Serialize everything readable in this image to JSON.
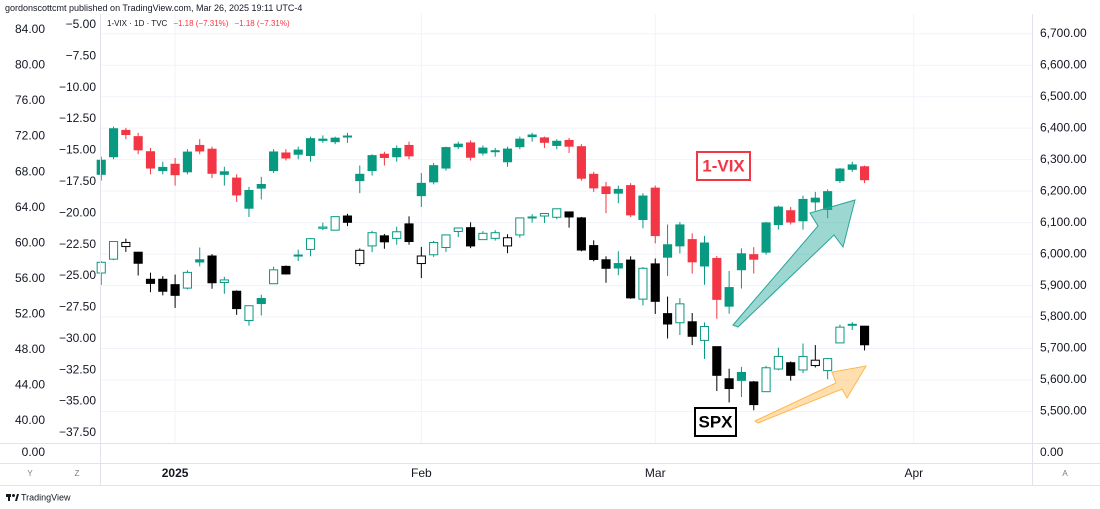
{
  "header": {
    "attribution": "gordonscottcmt published on TradingView.com, Mar 26, 2025 19:11 UTC-4",
    "footer": "TradingView"
  },
  "chart_data": {
    "type": "candlestick",
    "legend": {
      "symbol": "1-VIX · 1D · TVC",
      "values": [
        "−1.18 (−7.31%)",
        "−1.18 (−7.31%)"
      ]
    },
    "grid": true,
    "xlim": [
      -0.1,
      75.6
    ],
    "xticks": [
      {
        "value": 6,
        "label": "2025"
      },
      {
        "value": 26,
        "label": "Feb"
      },
      {
        "value": 45,
        "label": "Mar"
      },
      {
        "value": 66,
        "label": "Apr"
      }
    ],
    "y3lim": [
      37.5,
      85.35
    ],
    "y3ticks": [
      {
        "value": 84,
        "label": "84.00"
      },
      {
        "value": 80,
        "label": "80.00"
      },
      {
        "value": 76,
        "label": "76.00"
      },
      {
        "value": 72,
        "label": "72.00"
      },
      {
        "value": 68,
        "label": "68.00"
      },
      {
        "value": 64,
        "label": "64.00"
      },
      {
        "value": 60,
        "label": "60.00"
      },
      {
        "value": 56,
        "label": "56.00"
      },
      {
        "value": 52,
        "label": "52.00"
      },
      {
        "value": 48,
        "label": "48.00"
      },
      {
        "value": 44,
        "label": "44.00"
      },
      {
        "value": 40,
        "label": "40.00"
      }
    ],
    "ylim": [
      -38.3,
      -4.45
    ],
    "yticks": [
      {
        "value": -5,
        "label": "−5.00"
      },
      {
        "value": -7.5,
        "label": "−7.50"
      },
      {
        "value": -10,
        "label": "−10.00"
      },
      {
        "value": -12.5,
        "label": "−12.50"
      },
      {
        "value": -15,
        "label": "−15.00"
      },
      {
        "value": -17.5,
        "label": "−17.50"
      },
      {
        "value": -20,
        "label": "−20.00"
      },
      {
        "value": -22.5,
        "label": "−22.50"
      },
      {
        "value": -25,
        "label": "−25.00"
      },
      {
        "value": -27.5,
        "label": "−27.50"
      },
      {
        "value": -30,
        "label": "−30.00"
      },
      {
        "value": -32.5,
        "label": "−32.50"
      },
      {
        "value": -35,
        "label": "−35.00"
      },
      {
        "value": -37.5,
        "label": "−37.50"
      }
    ],
    "y2lim": [
      5400,
      6750
    ],
    "y2ticks": [
      {
        "value": 6700,
        "label": "6,700.00"
      },
      {
        "value": 6600,
        "label": "6,600.00"
      },
      {
        "value": 6500,
        "label": "6,500.00"
      },
      {
        "value": 6400,
        "label": "6,400.00"
      },
      {
        "value": 6300,
        "label": "6,300.00"
      },
      {
        "value": 6200,
        "label": "6,200.00"
      },
      {
        "value": 6100,
        "label": "6,100.00"
      },
      {
        "value": 6000,
        "label": "6,000.00"
      },
      {
        "value": 5900,
        "label": "5,900.00"
      },
      {
        "value": 5800,
        "label": "5,800.00"
      },
      {
        "value": 5700,
        "label": "5,700.00"
      },
      {
        "value": 5600,
        "label": "5,600.00"
      },
      {
        "value": 5500,
        "label": "5,500.00"
      }
    ],
    "lower_pane": {
      "left_ticks": [
        {
          "value": 0,
          "label": "0.00"
        }
      ],
      "right_ticks": [
        {
          "value": 0,
          "label": "0.00"
        }
      ]
    },
    "scale_buttons": [
      "Y",
      "Z",
      "A"
    ],
    "series": [
      {
        "name": "1-VIX",
        "axis": "y",
        "style": "filled",
        "up_color": "#089981",
        "down_color": "#f23645",
        "open": [
          -16.9,
          -15.5,
          -13.4,
          -13.9,
          -15.1,
          -16.6,
          -16.1,
          -16.7,
          -14.6,
          -14.9,
          -16.9,
          -17.2,
          -19.6,
          -18.0,
          -16.6,
          -15.2,
          -15.3,
          -15.4,
          -14.2,
          -14.3,
          -13.9,
          -17.4,
          -16.6,
          -15.3,
          -15.5,
          -14.6,
          -18.6,
          -17.5,
          -16.4,
          -14.7,
          -14.4,
          -15.2,
          -15.1,
          -15.9,
          -14.7,
          -13.9,
          -14.0,
          -14.6,
          -14.2,
          -14.7,
          -16.9,
          -17.9,
          -18.4,
          -17.8,
          -20.5,
          -18.0,
          -23.5,
          -22.6,
          -22.1,
          -24.2,
          -23.6,
          -27.4,
          -24.5,
          -23.3,
          -23.1,
          -20.9,
          -19.8,
          -20.6,
          -19.1,
          -19.7,
          -17.4,
          -16.5,
          -16.3
        ],
        "high": [
          -15.5,
          -13.1,
          -13.2,
          -13.6,
          -14.8,
          -15.9,
          -15.6,
          -14.9,
          -14.1,
          -14.7,
          -16.3,
          -16.9,
          -17.9,
          -17.1,
          -14.9,
          -14.9,
          -14.7,
          -13.9,
          -13.8,
          -13.9,
          -13.6,
          -16.2,
          -15.3,
          -15.1,
          -14.6,
          -14.3,
          -16.8,
          -16.0,
          -14.7,
          -14.3,
          -14.2,
          -14.6,
          -14.8,
          -14.7,
          -13.9,
          -13.6,
          -13.9,
          -14.1,
          -14.0,
          -14.5,
          -16.7,
          -17.5,
          -17.8,
          -17.6,
          -18.4,
          -17.8,
          -20.9,
          -20.7,
          -21.6,
          -21.8,
          -23.4,
          -24.6,
          -22.8,
          -22.7,
          -20.7,
          -19.4,
          -19.5,
          -18.6,
          -18.3,
          -18.1,
          -16.4,
          -15.9,
          -16.2
        ],
        "low": [
          -17.4,
          -15.7,
          -14.1,
          -15.3,
          -16.9,
          -16.9,
          -17.8,
          -16.9,
          -15.3,
          -17.2,
          -17.8,
          -19.1,
          -20.3,
          -18.9,
          -16.8,
          -15.8,
          -15.7,
          -15.9,
          -14.4,
          -14.5,
          -14.4,
          -18.4,
          -17.0,
          -16.2,
          -15.9,
          -15.7,
          -19.5,
          -17.7,
          -16.6,
          -14.9,
          -15.8,
          -15.4,
          -15.5,
          -16.3,
          -14.9,
          -14.3,
          -14.8,
          -14.9,
          -15.2,
          -17.4,
          -18.3,
          -20.0,
          -19.2,
          -20.3,
          -21.2,
          -22.4,
          -25.0,
          -23.2,
          -24.8,
          -25.7,
          -28.4,
          -28.0,
          -26.0,
          -24.8,
          -23.3,
          -21.3,
          -20.9,
          -21.3,
          -19.8,
          -20.4,
          -17.6,
          -16.7,
          -17.6
        ],
        "close": [
          -15.78,
          -13.27,
          -13.73,
          -14.95,
          -16.4,
          -16.35,
          -16.93,
          -15.13,
          -15.04,
          -16.82,
          -16.7,
          -18.54,
          -18.19,
          -17.71,
          -15.12,
          -15.6,
          -14.97,
          -14.06,
          -14.1,
          -14.02,
          -13.85,
          -16.9,
          -15.41,
          -15.56,
          -14.84,
          -15.43,
          -17.62,
          -16.21,
          -14.77,
          -14.5,
          -15.54,
          -14.81,
          -15.02,
          -14.89,
          -14.1,
          -13.77,
          -14.35,
          -14.27,
          -14.66,
          -17.21,
          -17.98,
          -18.43,
          -18.1,
          -20.13,
          -18.63,
          -21.78,
          -22.51,
          -20.93,
          -23.87,
          -22.37,
          -26.86,
          -25.92,
          -23.23,
          -23.66,
          -20.77,
          -19.51,
          -20.7,
          -18.9,
          -18.8,
          -18.28,
          -16.48,
          -16.15,
          -17.33
        ]
      },
      {
        "name": "SPX",
        "axis": "y2",
        "style": "hollow",
        "up_color": "#089981",
        "down_color": "#000000",
        "open": [
          5940,
          5984,
          6024,
          6006,
          5920,
          5920,
          5903,
          5892,
          5982,
          5994,
          5910,
          5882,
          5789,
          5859,
          5906,
          5961,
          5995,
          6015,
          6082,
          6076,
          6121,
          5970,
          6026,
          6058,
          6050,
          6096,
          5970,
          5998,
          6021,
          6072,
          6084,
          6046,
          6050,
          6026,
          6061,
          6118,
          6121,
          6117,
          6134,
          6115,
          6027,
          5982,
          5970,
          5981,
          5857,
          5969,
          5811,
          5782,
          5785,
          5726,
          5706,
          5604,
          5624,
          5594,
          5563,
          5635,
          5655,
          5632,
          5646,
          5630,
          5718,
          5775,
          5771
        ],
        "high": [
          5978,
          6040,
          6049,
          6007,
          5941,
          5930,
          5935,
          5949,
          6021,
          6000,
          5928,
          5885,
          5837,
          5871,
          5960,
          5964,
          6014,
          6051,
          6100,
          6119,
          6128,
          6018,
          6074,
          6064,
          6087,
          6120,
          6023,
          6042,
          6062,
          6084,
          6101,
          6073,
          6076,
          6063,
          6116,
          6127,
          6129,
          6145,
          6134,
          6118,
          6044,
          5993,
          6009,
          5993,
          5959,
          5986,
          5865,
          5860,
          5813,
          5783,
          5706,
          5636,
          5642,
          5597,
          5645,
          5703,
          5659,
          5716,
          5711,
          5670,
          5776,
          5784,
          5772
        ],
        "low": [
          5902,
          5981,
          6007,
          5932,
          5879,
          5869,
          5829,
          5888,
          5961,
          5890,
          5874,
          5807,
          5773,
          5805,
          5906,
          5935,
          5978,
          5993,
          6076,
          6075,
          6089,
          5962,
          6006,
          6017,
          6030,
          6030,
          5924,
          5991,
          6007,
          6054,
          6019,
          6046,
          6043,
          6003,
          6052,
          6100,
          6099,
          6111,
          6084,
          6009,
          5977,
          5909,
          5933,
          5858,
          5837,
          5810,
          5732,
          5743,
          5711,
          5667,
          5565,
          5529,
          5546,
          5504,
          5563,
          5631,
          5598,
          5622,
          5640,
          5603,
          5718,
          5759,
          5694
        ],
        "close": [
          5974,
          6040,
          6037,
          5971,
          5907,
          5882,
          5869,
          5942,
          5975,
          5909,
          5918,
          5827,
          5836,
          5843,
          5950,
          5937,
          5997,
          6049,
          6086,
          6119,
          6101,
          6012,
          6068,
          6039,
          6071,
          6040,
          5994,
          6037,
          6061,
          6083,
          6026,
          6066,
          6068,
          6052,
          6115,
          6115,
          6129,
          6144,
          6118,
          6013,
          5983,
          5955,
          5956,
          5861,
          5955,
          5850,
          5778,
          5842,
          5739,
          5770,
          5615,
          5573,
          5599,
          5522,
          5639,
          5675,
          5615,
          5675,
          5663,
          5668,
          5768,
          5777,
          5712
        ]
      }
    ]
  }
}
